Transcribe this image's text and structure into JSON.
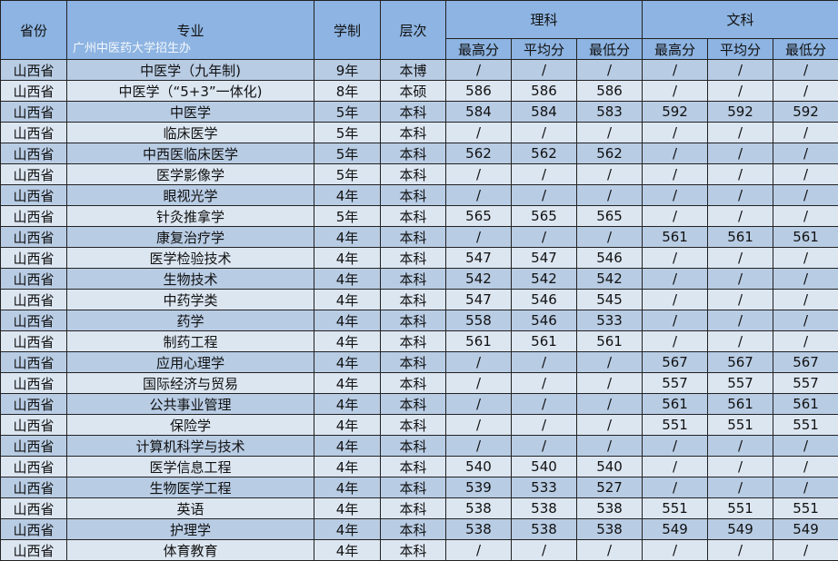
{
  "headers": {
    "province": "省份",
    "major": "专业",
    "duration": "学制",
    "level": "层次",
    "science": "理科",
    "arts": "文科",
    "max": "最高分",
    "avg": "平均分",
    "min": "最低分"
  },
  "rows": [
    [
      "山西省",
      "中医学（九年制)",
      "9年",
      "本博",
      "/",
      "/",
      "/",
      "/",
      "/",
      "/"
    ],
    [
      "山西省",
      "中医学（“5+3”一体化)",
      "8年",
      "本硕",
      "586",
      "586",
      "586",
      "/",
      "/",
      "/"
    ],
    [
      "山西省",
      "中医学",
      "5年",
      "本科",
      "584",
      "584",
      "583",
      "592",
      "592",
      "592"
    ],
    [
      "山西省",
      "临床医学",
      "5年",
      "本科",
      "/",
      "/",
      "/",
      "/",
      "/",
      "/"
    ],
    [
      "山西省",
      "中西医临床医学",
      "5年",
      "本科",
      "562",
      "562",
      "562",
      "/",
      "/",
      "/"
    ],
    [
      "山西省",
      "医学影像学",
      "5年",
      "本科",
      "/",
      "/",
      "/",
      "/",
      "/",
      "/"
    ],
    [
      "山西省",
      "眼视光学",
      "4年",
      "本科",
      "/",
      "/",
      "/",
      "/",
      "/",
      "/"
    ],
    [
      "山西省",
      "针灸推拿学",
      "5年",
      "本科",
      "565",
      "565",
      "565",
      "/",
      "/",
      "/"
    ],
    [
      "山西省",
      "康复治疗学",
      "4年",
      "本科",
      "/",
      "/",
      "/",
      "561",
      "561",
      "561"
    ],
    [
      "山西省",
      "医学检验技术",
      "4年",
      "本科",
      "547",
      "547",
      "546",
      "/",
      "/",
      "/"
    ],
    [
      "山西省",
      "生物技术",
      "4年",
      "本科",
      "542",
      "542",
      "542",
      "/",
      "/",
      "/"
    ],
    [
      "山西省",
      "中药学类",
      "4年",
      "本科",
      "547",
      "546",
      "545",
      "/",
      "/",
      "/"
    ],
    [
      "山西省",
      "药学",
      "4年",
      "本科",
      "558",
      "546",
      "533",
      "/",
      "/",
      "/"
    ],
    [
      "山西省",
      "制药工程",
      "4年",
      "本科",
      "561",
      "561",
      "561",
      "/",
      "/",
      "/"
    ],
    [
      "山西省",
      "应用心理学",
      "4年",
      "本科",
      "/",
      "/",
      "/",
      "567",
      "567",
      "567"
    ],
    [
      "山西省",
      "国际经济与贸易",
      "4年",
      "本科",
      "/",
      "/",
      "/",
      "557",
      "557",
      "557"
    ],
    [
      "山西省",
      "公共事业管理",
      "4年",
      "本科",
      "/",
      "/",
      "/",
      "561",
      "561",
      "561"
    ],
    [
      "山西省",
      "保险学",
      "4年",
      "本科",
      "/",
      "/",
      "/",
      "551",
      "551",
      "551"
    ],
    [
      "山西省",
      "计算机科学与技术",
      "4年",
      "本科",
      "/",
      "/",
      "/",
      "/",
      "/",
      "/"
    ],
    [
      "山西省",
      "医学信息工程",
      "4年",
      "本科",
      "540",
      "540",
      "540",
      "/",
      "/",
      "/"
    ],
    [
      "山西省",
      "生物医学工程",
      "4年",
      "本科",
      "539",
      "533",
      "527",
      "/",
      "/",
      "/"
    ],
    [
      "山西省",
      "英语",
      "4年",
      "本科",
      "538",
      "538",
      "538",
      "551",
      "551",
      "551"
    ],
    [
      "山西省",
      "护理学",
      "4年",
      "本科",
      "538",
      "538",
      "538",
      "549",
      "549",
      "549"
    ],
    [
      "山西省",
      "体育教育",
      "4年",
      "本科",
      "/",
      "/",
      "/",
      "/",
      "/",
      "/"
    ]
  ],
  "watermark": "广州中医药大学招生办"
}
